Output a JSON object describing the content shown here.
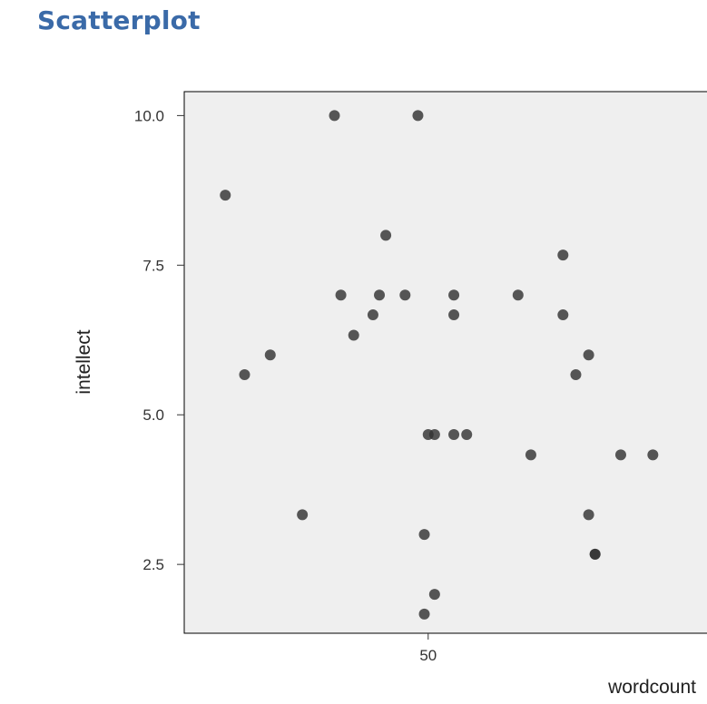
{
  "title": "Scatterplot",
  "chart_data": {
    "type": "scatter",
    "title": "",
    "xlabel": "wordcount",
    "ylabel": "intellect",
    "xlim": [
      31.0,
      72.0
    ],
    "ylim": [
      1.35,
      10.4
    ],
    "xticks": [
      50
    ],
    "xtick_labels": [
      "50"
    ],
    "yticks": [
      2.5,
      5.0,
      7.5,
      10.0
    ],
    "ytick_labels": [
      "2.5",
      "5.0",
      "7.5",
      "10.0"
    ],
    "grid": false,
    "legend": "none",
    "point_color": "#333333",
    "panel_background": "#efefef",
    "points": [
      {
        "x": 34.2,
        "y": 8.67
      },
      {
        "x": 35.7,
        "y": 5.67
      },
      {
        "x": 37.7,
        "y": 6.0
      },
      {
        "x": 40.2,
        "y": 3.33
      },
      {
        "x": 42.7,
        "y": 10.0
      },
      {
        "x": 43.2,
        "y": 7.0
      },
      {
        "x": 44.2,
        "y": 6.33
      },
      {
        "x": 45.7,
        "y": 6.67
      },
      {
        "x": 46.2,
        "y": 7.0
      },
      {
        "x": 46.7,
        "y": 8.0
      },
      {
        "x": 48.2,
        "y": 7.0
      },
      {
        "x": 49.2,
        "y": 10.0
      },
      {
        "x": 49.7,
        "y": 3.0
      },
      {
        "x": 49.7,
        "y": 1.67
      },
      {
        "x": 50.0,
        "y": 4.67
      },
      {
        "x": 50.5,
        "y": 4.67
      },
      {
        "x": 50.5,
        "y": 2.0
      },
      {
        "x": 52.0,
        "y": 7.0
      },
      {
        "x": 52.0,
        "y": 6.67
      },
      {
        "x": 52.0,
        "y": 4.67
      },
      {
        "x": 53.0,
        "y": 4.67
      },
      {
        "x": 57.0,
        "y": 7.0
      },
      {
        "x": 58.0,
        "y": 4.33
      },
      {
        "x": 60.5,
        "y": 7.67
      },
      {
        "x": 60.5,
        "y": 6.67
      },
      {
        "x": 61.5,
        "y": 5.67
      },
      {
        "x": 62.5,
        "y": 6.0
      },
      {
        "x": 62.5,
        "y": 3.33
      },
      {
        "x": 63.0,
        "y": 2.67
      },
      {
        "x": 63.0,
        "y": 2.67
      },
      {
        "x": 65.0,
        "y": 4.33
      },
      {
        "x": 67.5,
        "y": 4.33
      }
    ]
  }
}
